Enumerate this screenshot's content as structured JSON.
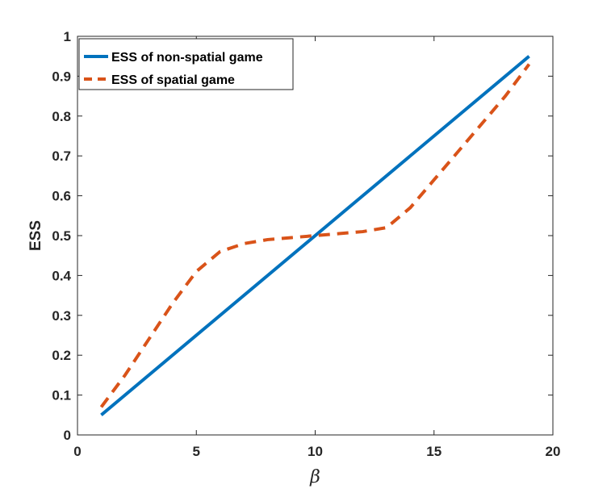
{
  "chart_data": {
    "type": "line",
    "xlabel": "β",
    "ylabel": "ESS",
    "xlim": [
      0,
      20
    ],
    "ylim": [
      0,
      1
    ],
    "xticks": [
      0,
      5,
      10,
      15,
      20
    ],
    "yticks": [
      0,
      0.1,
      0.2,
      0.3,
      0.4,
      0.5,
      0.6,
      0.7,
      0.8,
      0.9,
      1
    ],
    "grid": false,
    "legend_position": "top-left",
    "series": [
      {
        "name": "ESS of non-spatial game",
        "color": "#0072BD",
        "style": "solid",
        "x": [
          1,
          19
        ],
        "y": [
          0.05,
          0.95
        ]
      },
      {
        "name": "ESS of spatial game",
        "color": "#D95319",
        "style": "dashed",
        "x": [
          1,
          2,
          3,
          4,
          5,
          6,
          7,
          8,
          9,
          10,
          11,
          12,
          13,
          14,
          15,
          16,
          17,
          18,
          19
        ],
        "y": [
          0.07,
          0.15,
          0.24,
          0.33,
          0.41,
          0.46,
          0.48,
          0.49,
          0.495,
          0.5,
          0.505,
          0.51,
          0.52,
          0.57,
          0.64,
          0.71,
          0.78,
          0.85,
          0.93
        ]
      }
    ]
  }
}
